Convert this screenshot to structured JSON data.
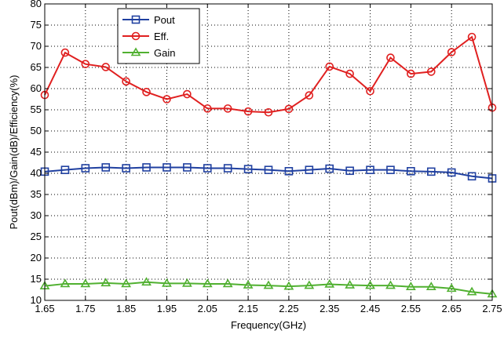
{
  "chart_data": {
    "type": "line",
    "title": "",
    "xlabel": "Frequency(GHz)",
    "ylabel": "Pout(dBm)/Gain(dB)/Efficiency(%)",
    "xlim": [
      1.65,
      2.75
    ],
    "ylim": [
      10,
      80
    ],
    "grid": true,
    "legend_position": "top-left-center",
    "x_ticks": [
      "1.65",
      "1.75",
      "1.85",
      "1.95",
      "2.05",
      "2.15",
      "2.25",
      "2.35",
      "2.45",
      "2.55",
      "2.65",
      "2.75"
    ],
    "y_ticks": [
      "10",
      "15",
      "20",
      "25",
      "30",
      "35",
      "40",
      "45",
      "50",
      "55",
      "60",
      "65",
      "70",
      "75",
      "80"
    ],
    "x": [
      1.65,
      1.7,
      1.75,
      1.8,
      1.85,
      1.9,
      1.95,
      2.0,
      2.05,
      2.1,
      2.15,
      2.2,
      2.25,
      2.3,
      2.35,
      2.4,
      2.45,
      2.5,
      2.55,
      2.6,
      2.65,
      2.7,
      2.75
    ],
    "series": [
      {
        "name": "Pout",
        "color": "#2040a0",
        "marker": "square",
        "values": [
          40.4,
          40.8,
          41.2,
          41.4,
          41.2,
          41.4,
          41.4,
          41.4,
          41.2,
          41.2,
          41.0,
          40.8,
          40.5,
          40.8,
          41.1,
          40.6,
          40.8,
          40.8,
          40.5,
          40.4,
          40.2,
          39.3,
          38.8
        ]
      },
      {
        "name": "Eff.",
        "color": "#e02020",
        "marker": "circle",
        "values": [
          58.5,
          68.5,
          65.8,
          65.1,
          61.7,
          59.2,
          57.5,
          58.7,
          55.3,
          55.3,
          54.6,
          54.4,
          55.2,
          58.4,
          65.2,
          63.5,
          59.4,
          67.3,
          63.5,
          64.0,
          68.6,
          72.2,
          55.5
        ]
      },
      {
        "name": "Gain",
        "color": "#50b030",
        "marker": "triangle",
        "values": [
          13.4,
          13.9,
          13.9,
          14.1,
          13.9,
          14.3,
          14.0,
          14.0,
          13.9,
          13.9,
          13.6,
          13.5,
          13.3,
          13.5,
          13.8,
          13.6,
          13.5,
          13.5,
          13.2,
          13.2,
          12.8,
          12.0,
          11.5
        ]
      }
    ]
  }
}
